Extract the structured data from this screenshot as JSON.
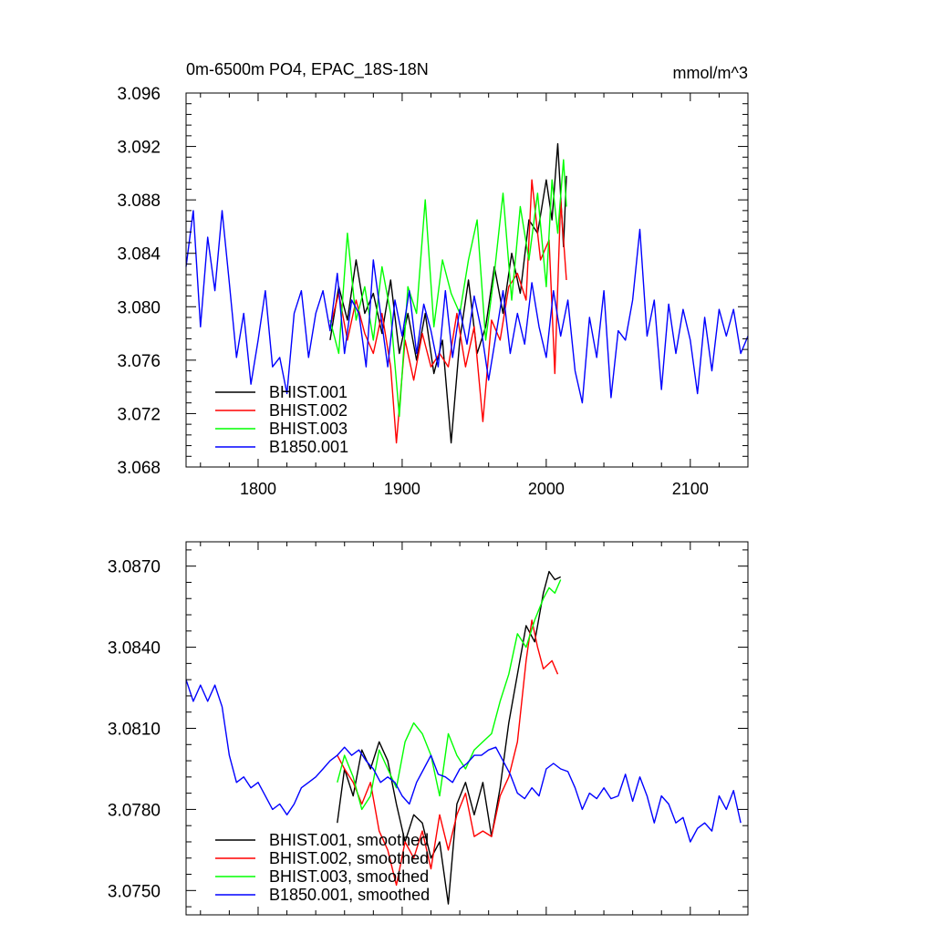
{
  "colors": {
    "BHIST.001": "#000000",
    "BHIST.002": "#ff0000",
    "BHIST.003": "#00ff00",
    "B1850.001": "#0000ff"
  },
  "chart_data": [
    {
      "type": "line",
      "title": "0m-6500m PO4, EPAC_18S-18N",
      "units_label": "mmol/m^3",
      "xlim": [
        1750,
        2140
      ],
      "ylim": [
        3.068,
        3.096
      ],
      "xticks": [
        1800,
        1900,
        2000,
        2100
      ],
      "xtick_labels": [
        "1800",
        "1900",
        "2000",
        "2100"
      ],
      "yticks": [
        3.068,
        3.072,
        3.076,
        3.08,
        3.084,
        3.088,
        3.092,
        3.096
      ],
      "ytick_labels": [
        "3.068",
        "3.072",
        "3.076",
        "3.080",
        "3.084",
        "3.088",
        "3.092",
        "3.096"
      ],
      "legend_position": "bottom-left",
      "series": [
        {
          "name": "BHIST.001",
          "color": "#000000",
          "x": [
            1850,
            1856,
            1862,
            1868,
            1874,
            1880,
            1886,
            1892,
            1898,
            1904,
            1910,
            1916,
            1922,
            1928,
            1934,
            1940,
            1946,
            1952,
            1958,
            1964,
            1970,
            1976,
            1982,
            1988,
            1994,
            2000,
            2004,
            2008,
            2012,
            2014
          ],
          "y": [
            3.0775,
            3.0815,
            3.079,
            3.0835,
            3.0795,
            3.081,
            3.078,
            3.082,
            3.0765,
            3.0795,
            3.076,
            3.0795,
            3.075,
            3.0775,
            3.0698,
            3.0775,
            3.082,
            3.0765,
            3.0785,
            3.083,
            3.0795,
            3.084,
            3.081,
            3.0865,
            3.0855,
            3.0895,
            3.0865,
            3.0922,
            3.0845,
            3.0898
          ]
        },
        {
          "name": "BHIST.002",
          "color": "#ff0000",
          "x": [
            1850,
            1856,
            1862,
            1868,
            1874,
            1880,
            1886,
            1892,
            1896,
            1902,
            1908,
            1914,
            1920,
            1926,
            1932,
            1938,
            1944,
            1950,
            1956,
            1962,
            1968,
            1974,
            1980,
            1986,
            1990,
            1996,
            2002,
            2006,
            2010,
            2014
          ],
          "y": [
            3.0785,
            3.081,
            3.0775,
            3.0805,
            3.078,
            3.0765,
            3.0795,
            3.0755,
            3.0698,
            3.0775,
            3.0745,
            3.078,
            3.0755,
            3.0765,
            3.0755,
            3.0795,
            3.0755,
            3.0785,
            3.0714,
            3.079,
            3.0775,
            3.0815,
            3.0825,
            3.0805,
            3.0895,
            3.0835,
            3.085,
            3.075,
            3.088,
            3.082
          ]
        },
        {
          "name": "BHIST.003",
          "color": "#00ff00",
          "x": [
            1850,
            1856,
            1862,
            1868,
            1874,
            1880,
            1886,
            1892,
            1898,
            1904,
            1910,
            1916,
            1922,
            1928,
            1934,
            1940,
            1946,
            1952,
            1958,
            1964,
            1970,
            1976,
            1982,
            1988,
            1994,
            2000,
            2004,
            2008,
            2012,
            2014
          ],
          "y": [
            3.079,
            3.0765,
            3.0855,
            3.079,
            3.0815,
            3.0775,
            3.083,
            3.0795,
            3.0718,
            3.0815,
            3.0795,
            3.088,
            3.0785,
            3.0835,
            3.081,
            3.0795,
            3.0835,
            3.0865,
            3.0775,
            3.0825,
            3.0885,
            3.0805,
            3.0875,
            3.0835,
            3.0885,
            3.0815,
            3.0895,
            3.0855,
            3.091,
            3.0875
          ]
        },
        {
          "name": "B1850.001",
          "color": "#0000ff",
          "x": [
            1750,
            1755,
            1760,
            1765,
            1770,
            1775,
            1780,
            1785,
            1790,
            1795,
            1800,
            1805,
            1810,
            1815,
            1820,
            1825,
            1830,
            1835,
            1840,
            1845,
            1850,
            1855,
            1860,
            1865,
            1870,
            1875,
            1880,
            1885,
            1890,
            1895,
            1900,
            1905,
            1910,
            1915,
            1920,
            1925,
            1930,
            1935,
            1940,
            1945,
            1950,
            1955,
            1960,
            1965,
            1970,
            1975,
            1980,
            1985,
            1990,
            1995,
            2000,
            2005,
            2010,
            2015,
            2020,
            2025,
            2030,
            2035,
            2040,
            2045,
            2050,
            2055,
            2060,
            2065,
            2070,
            2075,
            2080,
            2085,
            2090,
            2095,
            2100,
            2105,
            2110,
            2115,
            2120,
            2125,
            2130,
            2135,
            2140
          ],
          "y": [
            3.083,
            3.0872,
            3.0785,
            3.0852,
            3.0812,
            3.0872,
            3.0818,
            3.0762,
            3.0795,
            3.0742,
            3.0775,
            3.0812,
            3.0755,
            3.0762,
            3.0735,
            3.0795,
            3.0812,
            3.0762,
            3.0795,
            3.0812,
            3.0782,
            3.0825,
            3.0765,
            3.0805,
            3.0795,
            3.0755,
            3.0835,
            3.0795,
            3.0755,
            3.0805,
            3.0778,
            3.0812,
            3.0765,
            3.0802,
            3.0782,
            3.0755,
            3.0812,
            3.0762,
            3.0798,
            3.0772,
            3.0808,
            3.0782,
            3.0745,
            3.0778,
            3.0812,
            3.0765,
            3.0795,
            3.0772,
            3.0818,
            3.0785,
            3.0762,
            3.0812,
            3.0778,
            3.0805,
            3.0752,
            3.0728,
            3.0792,
            3.0762,
            3.0812,
            3.0732,
            3.0782,
            3.0775,
            3.0805,
            3.0858,
            3.0778,
            3.0805,
            3.0738,
            3.0802,
            3.0765,
            3.0798,
            3.0775,
            3.0735,
            3.0792,
            3.0752,
            3.0798,
            3.0778,
            3.0798,
            3.0765,
            3.0778
          ]
        }
      ]
    },
    {
      "type": "line",
      "xlim": [
        1750,
        2140
      ],
      "ylim": [
        3.0741,
        3.0879
      ],
      "xticks": [
        1800,
        1900,
        2000,
        2100
      ],
      "yticks": [
        3.075,
        3.078,
        3.081,
        3.084,
        3.087
      ],
      "ytick_labels": [
        "3.0750",
        "3.0780",
        "3.0810",
        "3.0840",
        "3.0870"
      ],
      "legend_position": "bottom-left",
      "series": [
        {
          "name": "BHIST.001, smoothed",
          "color": "#000000",
          "x": [
            1855,
            1860,
            1866,
            1872,
            1878,
            1884,
            1890,
            1896,
            1902,
            1908,
            1914,
            1920,
            1926,
            1932,
            1938,
            1944,
            1950,
            1956,
            1962,
            1968,
            1974,
            1980,
            1986,
            1992,
            1998,
            2002,
            2006,
            2010
          ],
          "y": [
            3.0775,
            3.0795,
            3.0785,
            3.0802,
            3.0795,
            3.0805,
            3.0798,
            3.0782,
            3.0768,
            3.0778,
            3.0775,
            3.0762,
            3.0768,
            3.0745,
            3.0782,
            3.079,
            3.0778,
            3.079,
            3.077,
            3.0788,
            3.0812,
            3.083,
            3.0848,
            3.0842,
            3.086,
            3.0868,
            3.0865,
            3.0866
          ]
        },
        {
          "name": "BHIST.002, smoothed",
          "color": "#ff0000",
          "x": [
            1855,
            1860,
            1866,
            1872,
            1878,
            1884,
            1890,
            1896,
            1902,
            1908,
            1914,
            1920,
            1926,
            1932,
            1938,
            1944,
            1950,
            1956,
            1962,
            1968,
            1974,
            1980,
            1986,
            1990,
            1994,
            1998,
            2004,
            2008
          ],
          "y": [
            3.08,
            3.0795,
            3.079,
            3.0782,
            3.079,
            3.0772,
            3.0765,
            3.0752,
            3.0768,
            3.0762,
            3.0772,
            3.0758,
            3.0778,
            3.0765,
            3.0778,
            3.0786,
            3.077,
            3.0772,
            3.077,
            3.0785,
            3.0792,
            3.0805,
            3.0835,
            3.085,
            3.084,
            3.0832,
            3.0835,
            3.083
          ]
        },
        {
          "name": "BHIST.003, smoothed",
          "color": "#00ff00",
          "x": [
            1855,
            1860,
            1866,
            1872,
            1878,
            1884,
            1890,
            1896,
            1902,
            1908,
            1914,
            1920,
            1926,
            1932,
            1938,
            1944,
            1950,
            1956,
            1962,
            1968,
            1974,
            1980,
            1986,
            1992,
            1998,
            2002,
            2006,
            2010
          ],
          "y": [
            3.079,
            3.08,
            3.0792,
            3.078,
            3.0785,
            3.0802,
            3.0795,
            3.0788,
            3.0805,
            3.0812,
            3.0808,
            3.08,
            3.0785,
            3.0808,
            3.08,
            3.0795,
            3.0802,
            3.0805,
            3.0808,
            3.082,
            3.083,
            3.0845,
            3.084,
            3.085,
            3.0858,
            3.0862,
            3.086,
            3.0865
          ]
        },
        {
          "name": "B1850.001, smoothed",
          "color": "#0000ff",
          "x": [
            1750,
            1755,
            1760,
            1765,
            1770,
            1775,
            1780,
            1785,
            1790,
            1795,
            1800,
            1805,
            1810,
            1815,
            1820,
            1825,
            1830,
            1835,
            1840,
            1845,
            1850,
            1855,
            1860,
            1865,
            1870,
            1875,
            1880,
            1885,
            1890,
            1895,
            1900,
            1905,
            1910,
            1915,
            1920,
            1925,
            1930,
            1935,
            1940,
            1945,
            1950,
            1955,
            1960,
            1965,
            1970,
            1975,
            1980,
            1985,
            1990,
            1995,
            2000,
            2005,
            2010,
            2015,
            2020,
            2025,
            2030,
            2035,
            2040,
            2045,
            2050,
            2055,
            2060,
            2065,
            2070,
            2075,
            2080,
            2085,
            2090,
            2095,
            2100,
            2105,
            2110,
            2115,
            2120,
            2125,
            2130,
            2135
          ],
          "y": [
            3.0828,
            3.082,
            3.0826,
            3.082,
            3.0826,
            3.0818,
            3.08,
            3.079,
            3.0792,
            3.0788,
            3.079,
            3.0785,
            3.078,
            3.0782,
            3.0778,
            3.0782,
            3.0788,
            3.079,
            3.0792,
            3.0795,
            3.0798,
            3.08,
            3.0803,
            3.08,
            3.0802,
            3.0798,
            3.0795,
            3.079,
            3.0792,
            3.079,
            3.0785,
            3.0782,
            3.079,
            3.0795,
            3.08,
            3.0793,
            3.0792,
            3.079,
            3.0795,
            3.0797,
            3.08,
            3.08,
            3.0802,
            3.0803,
            3.0798,
            3.0793,
            3.0786,
            3.0784,
            3.0788,
            3.0785,
            3.0795,
            3.0797,
            3.0795,
            3.0794,
            3.0788,
            3.078,
            3.0786,
            3.0784,
            3.0788,
            3.0784,
            3.0785,
            3.0793,
            3.0783,
            3.0792,
            3.0785,
            3.0775,
            3.0785,
            3.0782,
            3.0775,
            3.0777,
            3.0768,
            3.0773,
            3.0775,
            3.0772,
            3.0785,
            3.078,
            3.0787,
            3.0775
          ]
        }
      ]
    }
  ]
}
